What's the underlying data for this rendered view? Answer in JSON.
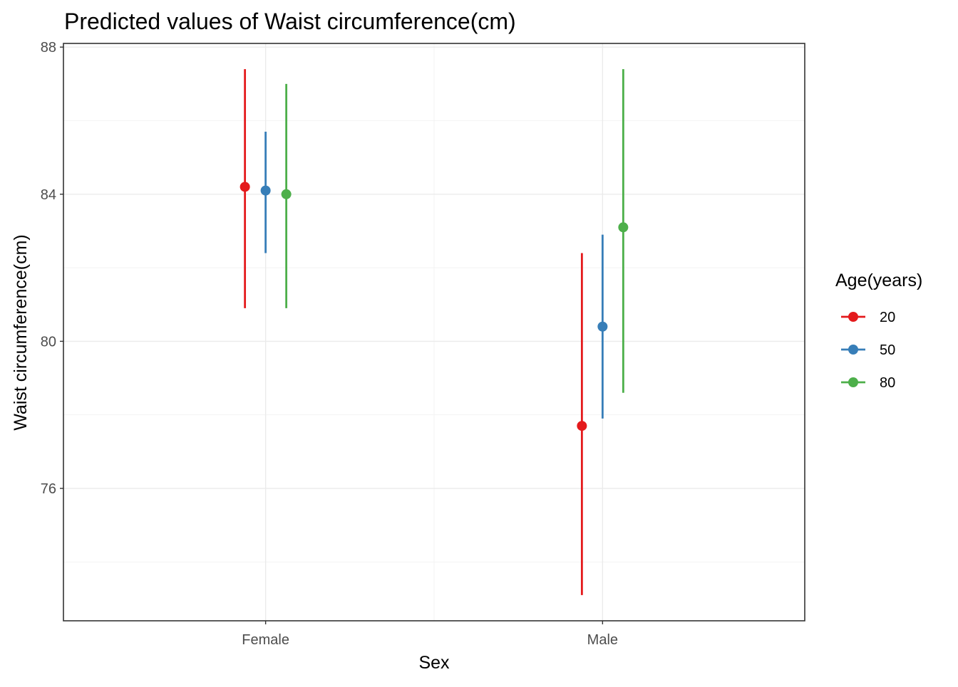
{
  "chart_data": {
    "type": "scatter",
    "subtype": "point-range",
    "title": "Predicted values of Waist circumference(cm)",
    "xlabel": "Sex",
    "ylabel": "Waist circumference(cm)",
    "categories": [
      "Female",
      "Male"
    ],
    "ylim": [
      72.4,
      88.1
    ],
    "yticks": [
      76,
      80,
      84,
      88
    ],
    "grid": true,
    "legend": {
      "title": "Age(years)",
      "position": "right"
    },
    "series": [
      {
        "name": "20",
        "color": "#e41a1c",
        "points": [
          {
            "x": "Female",
            "y": 84.2,
            "lower": 80.9,
            "upper": 87.4
          },
          {
            "x": "Male",
            "y": 77.7,
            "lower": 73.1,
            "upper": 82.4
          }
        ]
      },
      {
        "name": "50",
        "color": "#377eb8",
        "points": [
          {
            "x": "Female",
            "y": 84.1,
            "lower": 82.4,
            "upper": 85.7
          },
          {
            "x": "Male",
            "y": 80.4,
            "lower": 77.9,
            "upper": 82.9
          }
        ]
      },
      {
        "name": "80",
        "color": "#4daf4a",
        "points": [
          {
            "x": "Female",
            "y": 84.0,
            "lower": 80.9,
            "upper": 87.0
          },
          {
            "x": "Male",
            "y": 83.1,
            "lower": 78.6,
            "upper": 87.4
          }
        ]
      }
    ]
  }
}
